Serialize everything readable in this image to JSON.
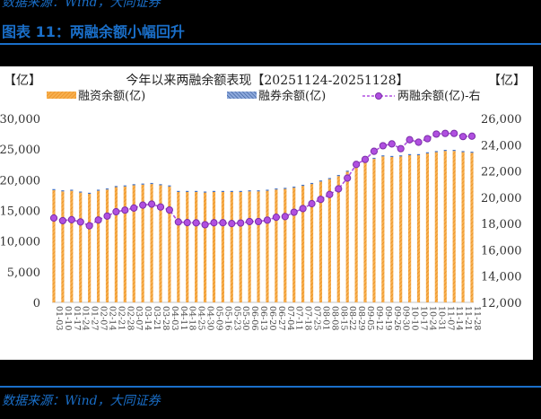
{
  "header": {
    "top_source": "数据来源：Wind，大同证券",
    "figure_title": "图表 11：两融余额小幅回升"
  },
  "footer": {
    "source": "数据来源：Wind，大同证券"
  },
  "colors": {
    "accent_blue": "#1a6fc9",
    "financing_bar": "#f39c2a",
    "securities_lending_bar": "#4472c4",
    "total_line": "#b04fe0"
  },
  "chart_data": {
    "type": "bar",
    "title": "今年以来两融余额表现【20251124-20251128】",
    "left_unit": "【亿】",
    "right_unit": "【亿】",
    "legend": [
      "融资余额(亿)",
      "融券余额(亿)",
      "两融余额(亿)-右"
    ],
    "legend_position": "top",
    "ylabel_left": "亿",
    "ylabel_right": "亿",
    "ylim_left": [
      0,
      30000
    ],
    "ylim_right": [
      12000,
      26000
    ],
    "yticks_left": [
      "0",
      "5,000",
      "10,000",
      "15,000",
      "20,000",
      "25,000",
      "30,000"
    ],
    "yticks_right": [
      "12,000",
      "14,000",
      "16,000",
      "18,000",
      "20,000",
      "22,000",
      "24,000",
      "26,000"
    ],
    "grid": false,
    "categories": [
      "01-03",
      "01-10",
      "01-17",
      "01-24",
      "01-27",
      "02-07",
      "02-14",
      "02-21",
      "02-28",
      "03-07",
      "03-14",
      "03-21",
      "03-28",
      "04-03",
      "04-11",
      "04-18",
      "04-25",
      "04-30",
      "05-09",
      "05-16",
      "05-23",
      "05-30",
      "06-06",
      "06-13",
      "06-20",
      "06-27",
      "07-04",
      "07-11",
      "07-18",
      "07-25",
      "08-01",
      "08-08",
      "08-15",
      "08-22",
      "08-29",
      "09-05",
      "09-12",
      "09-19",
      "09-26",
      "09-30",
      "10-10",
      "10-17",
      "10-24",
      "10-31",
      "11-07",
      "11-14",
      "11-21",
      "11-28"
    ],
    "series": [
      {
        "name": "融资余额(亿)",
        "axis": "left",
        "type": "bar",
        "values": [
          18300,
          18100,
          18200,
          17900,
          17700,
          18200,
          18400,
          18800,
          18900,
          19100,
          19200,
          19300,
          19100,
          18900,
          18000,
          18000,
          18000,
          17900,
          18000,
          18000,
          18000,
          18000,
          18100,
          18100,
          18200,
          18400,
          18500,
          18700,
          19000,
          19300,
          19700,
          20100,
          20600,
          21300,
          22400,
          22900,
          23400,
          23800,
          23700,
          23800,
          24000,
          24000,
          24300,
          24500,
          24700,
          24700,
          24500,
          24400
        ]
      },
      {
        "name": "融券余额(亿)",
        "axis": "left",
        "type": "bar",
        "values": [
          120,
          120,
          115,
          115,
          115,
          110,
          110,
          110,
          110,
          110,
          110,
          110,
          110,
          105,
          95,
          95,
          95,
          95,
          95,
          95,
          95,
          95,
          95,
          95,
          95,
          95,
          95,
          100,
          100,
          100,
          105,
          110,
          110,
          115,
          120,
          125,
          125,
          125,
          125,
          125,
          125,
          125,
          125,
          125,
          125,
          125,
          125,
          125
        ]
      },
      {
        "name": "两融余额(亿)-右",
        "axis": "right",
        "type": "line",
        "values": [
          18420,
          18220,
          18290,
          18120,
          17830,
          18270,
          18570,
          18900,
          19020,
          19180,
          19400,
          19480,
          19260,
          19030,
          18120,
          18070,
          18050,
          17910,
          18060,
          18060,
          18000,
          18040,
          18150,
          18150,
          18260,
          18480,
          18530,
          18860,
          19140,
          19510,
          19840,
          20210,
          20640,
          21460,
          22500,
          22880,
          23500,
          23920,
          24060,
          23700,
          24380,
          24190,
          24460,
          24810,
          24860,
          24860,
          24620,
          24650
        ]
      }
    ]
  }
}
